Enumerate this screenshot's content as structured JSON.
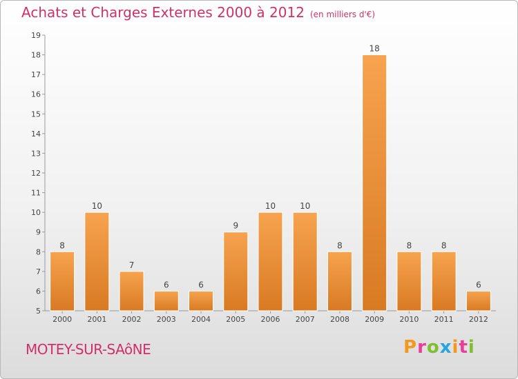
{
  "header": {
    "title": "Achats et Charges Externes 2000 à 2012",
    "unit": "(en milliers d'€)"
  },
  "footer": {
    "place": "MOTEY-SUR-SAôNE",
    "logo": "Proxiti"
  },
  "colors": {
    "title": "#d0306a",
    "bar_light": "#f7a34f",
    "bar_dark": "#d87a22",
    "logo_letters": [
      "#f39a1e",
      "#e8409a",
      "#7cbf2f",
      "#2aa3de",
      "#f39a1e",
      "#e8409a",
      "#7cbf2f"
    ]
  },
  "chart_data": {
    "type": "bar",
    "categories": [
      "2000",
      "2001",
      "2002",
      "2003",
      "2004",
      "2005",
      "2006",
      "2007",
      "2008",
      "2009",
      "2010",
      "2011",
      "2012"
    ],
    "values": [
      8,
      10,
      7,
      6,
      6,
      9,
      10,
      10,
      8,
      18,
      8,
      8,
      6
    ],
    "ylim": [
      5,
      19
    ],
    "yticks": [
      5,
      6,
      7,
      8,
      9,
      10,
      11,
      12,
      13,
      14,
      15,
      16,
      17,
      18,
      19
    ],
    "grid": false,
    "data_labels": true
  }
}
